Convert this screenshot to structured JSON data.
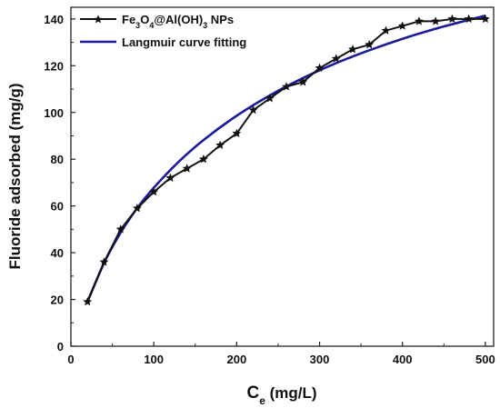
{
  "chart_data": {
    "type": "line",
    "xlabel_main": "C",
    "xlabel_sub": "e",
    "xlabel_unit": " (mg/L)",
    "ylabel": "Fluoride adsorbed (mg/g)",
    "xlim": [
      0,
      510
    ],
    "ylim": [
      0,
      145
    ],
    "xticks": [
      0,
      100,
      200,
      300,
      400,
      500
    ],
    "yticks": [
      0,
      20,
      40,
      60,
      80,
      100,
      120,
      140
    ],
    "legend_position": "top-left",
    "grid": false,
    "series": [
      {
        "name": "Fe3O4@Al(OH)3 NPs",
        "name_parts": {
          "p1": "Fe",
          "s1": "3",
          "p2": "O",
          "s2": "4",
          "p3": "@Al(OH)",
          "s3": "3",
          "p4": " NPs"
        },
        "style": "line-markers",
        "color": "#111111",
        "x": [
          20,
          40,
          60,
          80,
          100,
          120,
          140,
          160,
          180,
          200,
          220,
          240,
          260,
          280,
          300,
          320,
          340,
          360,
          380,
          400,
          420,
          440,
          460,
          480,
          500
        ],
        "y": [
          19,
          36,
          50,
          59,
          66,
          72,
          76,
          80,
          86,
          91,
          101,
          106,
          111,
          113,
          119,
          123,
          127,
          129,
          135,
          137,
          139,
          139,
          140,
          140,
          140
        ]
      },
      {
        "name": "Langmuir curve fitting",
        "style": "line",
        "color": "#1a1a9a",
        "x": [
          20,
          40,
          60,
          80,
          100,
          130,
          160,
          200,
          240,
          280,
          320,
          360,
          400,
          440,
          480,
          500
        ],
        "y": [
          19,
          35.6,
          48.6,
          59.1,
          67.8,
          78.9,
          88.2,
          98.6,
          107.3,
          114.7,
          121.1,
          126.6,
          131.5,
          135.8,
          139.6,
          141.4
        ]
      }
    ]
  }
}
